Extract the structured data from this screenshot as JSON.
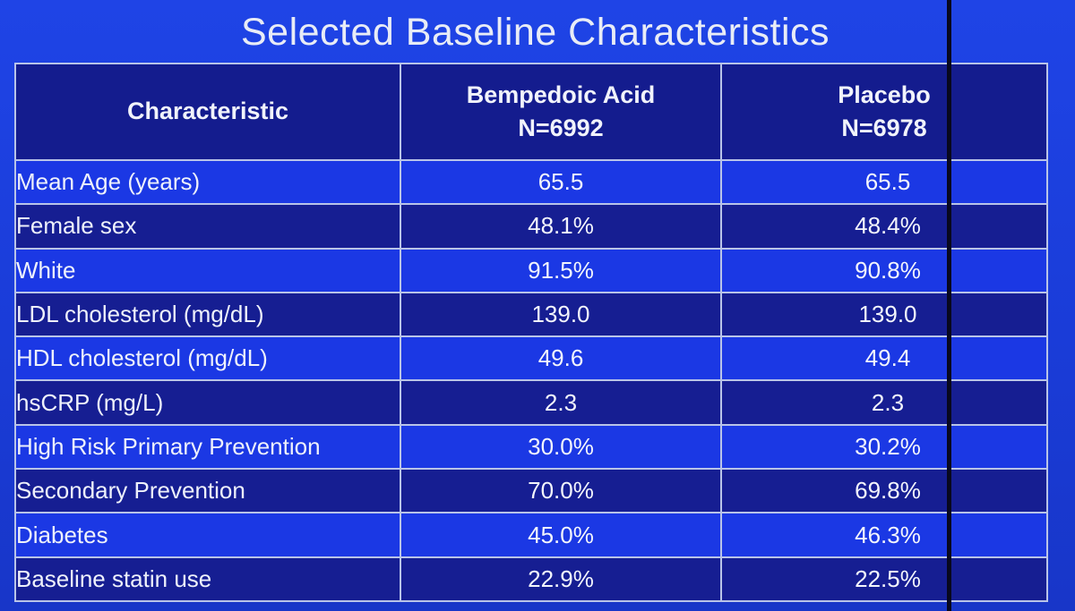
{
  "title": "Selected Baseline Characteristics",
  "table": {
    "headers": {
      "characteristic": "Characteristic",
      "bempedoic_name": "Bempedoic Acid",
      "bempedoic_n": "N=6992",
      "placebo_name": "Placebo",
      "placebo_n": "N=6978"
    },
    "rows": [
      {
        "label": "Mean Age (years)",
        "bempedoic": "65.5",
        "placebo": "65.5"
      },
      {
        "label": "Female sex",
        "bempedoic": "48.1%",
        "placebo": "48.4%"
      },
      {
        "label": "White",
        "bempedoic": "91.5%",
        "placebo": "90.8%"
      },
      {
        "label": "LDL cholesterol (mg/dL)",
        "bempedoic": "139.0",
        "placebo": "139.0"
      },
      {
        "label": "HDL cholesterol (mg/dL)",
        "bempedoic": "49.6",
        "placebo": "49.4"
      },
      {
        "label": "hsCRP (mg/L)",
        "bempedoic": "2.3",
        "placebo": "2.3"
      },
      {
        "label": "High Risk Primary Prevention",
        "bempedoic": "30.0%",
        "placebo": "30.2%"
      },
      {
        "label": "Secondary Prevention",
        "bempedoic": "70.0%",
        "placebo": "69.8%"
      },
      {
        "label": "Diabetes",
        "bempedoic": "45.0%",
        "placebo": "46.3%"
      },
      {
        "label": "Baseline statin use",
        "bempedoic": "22.9%",
        "placebo": "22.5%"
      }
    ]
  },
  "colors": {
    "background": "#1b3ed8",
    "header_fill": "#141c8e",
    "row_dark": "#161e92",
    "row_bright": "#1b38e4",
    "grid_line": "#b9c4e8",
    "text": "#eef1fb"
  }
}
